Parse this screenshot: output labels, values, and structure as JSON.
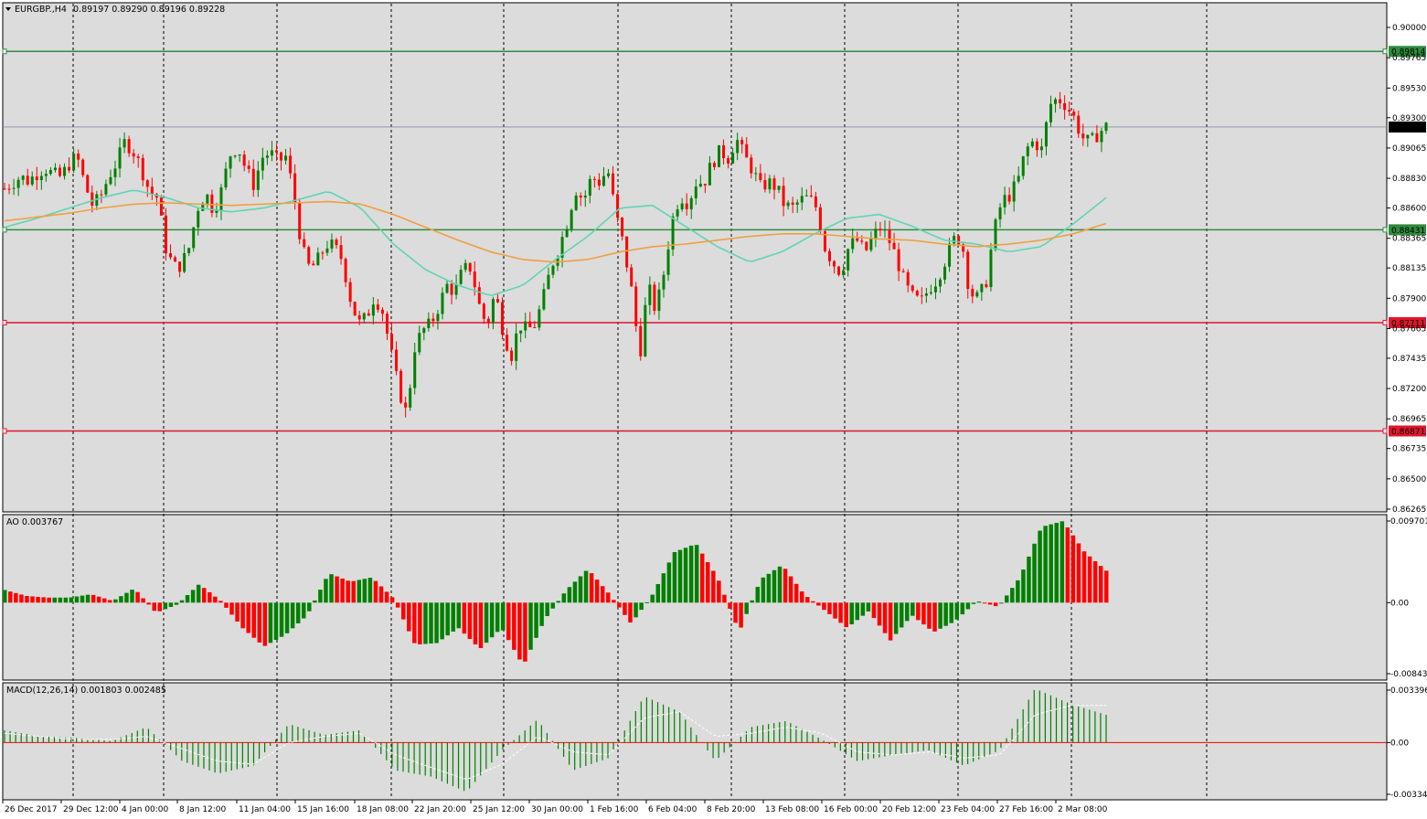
{
  "chart_data": [
    {
      "type": "candlestick",
      "symbol_label": "EURGBP.,H4",
      "ohlc_label": "0.89197 0.89290 0.89196 0.89228",
      "ylim": [
        0.86265,
        0.9
      ],
      "y_ticks": [
        "0.90000",
        "0.89765",
        "0.89530",
        "0.89300",
        "0.89065",
        "0.88830",
        "0.88600",
        "0.88365",
        "0.88135",
        "0.87900",
        "0.87665",
        "0.87435",
        "0.87200",
        "0.86965",
        "0.86735",
        "0.86500",
        "0.86265"
      ],
      "x_ticks": [
        "26 Dec 2017",
        "29 Dec 12:00",
        "4 Jan 00:00",
        "8 Jan 12:00",
        "11 Jan 04:00",
        "15 Jan 16:00",
        "18 Jan 08:00",
        "22 Jan 20:00",
        "25 Jan 12:00",
        "30 Jan 00:00",
        "1 Feb 16:00",
        "6 Feb 04:00",
        "8 Feb 20:00",
        "13 Feb 08:00",
        "16 Feb 00:00",
        "20 Feb 12:00",
        "23 Feb 04:00",
        "27 Feb 16:00",
        "2 Mar 08:00"
      ],
      "current_price": "0.89228",
      "close_path": [
        0.8875,
        0.888,
        0.8884,
        0.8881,
        0.8887,
        0.8891,
        0.8886,
        0.8884,
        0.8894,
        0.89,
        0.8878,
        0.8861,
        0.887,
        0.8885,
        0.8896,
        0.8912,
        0.8904,
        0.8891,
        0.8873,
        0.8868,
        0.883,
        0.8814,
        0.8816,
        0.883,
        0.886,
        0.8872,
        0.8858,
        0.8874,
        0.8901,
        0.8908,
        0.889,
        0.8878,
        0.8899,
        0.8903,
        0.8896,
        0.89,
        0.887,
        0.8828,
        0.8812,
        0.882,
        0.8832,
        0.883,
        0.882,
        0.879,
        0.877,
        0.8775,
        0.8792,
        0.878,
        0.875,
        0.872,
        0.87,
        0.8752,
        0.8765,
        0.877,
        0.8784,
        0.88,
        0.8795,
        0.8812,
        0.8814,
        0.8785,
        0.8768,
        0.8795,
        0.8765,
        0.8745,
        0.877,
        0.8765,
        0.877,
        0.879,
        0.8815,
        0.883,
        0.885,
        0.8875,
        0.8866,
        0.8884,
        0.888,
        0.889,
        0.8856,
        0.883,
        0.8795,
        0.8745,
        0.88,
        0.878,
        0.881,
        0.885,
        0.887,
        0.8864,
        0.888,
        0.888,
        0.8895,
        0.8904,
        0.8899,
        0.8914,
        0.89,
        0.889,
        0.8876,
        0.888,
        0.8876,
        0.8862,
        0.886,
        0.8866,
        0.8868,
        0.886,
        0.883,
        0.8818,
        0.881,
        0.883,
        0.8835,
        0.8825,
        0.8838,
        0.8845,
        0.8835,
        0.882,
        0.88,
        0.879,
        0.8787,
        0.8798,
        0.8805,
        0.882,
        0.8835,
        0.8837,
        0.8795,
        0.879,
        0.88,
        0.884,
        0.8865,
        0.887,
        0.888,
        0.8905,
        0.8912,
        0.8905,
        0.894,
        0.8945,
        0.894,
        0.893,
        0.8915,
        0.891,
        0.8918,
        0.8923
      ],
      "horizontal_levels": [
        {
          "label": "0.89814",
          "value": 0.89814,
          "color": "#2e8b3e"
        },
        {
          "label": "0.88431",
          "value": 0.88431,
          "color": "#2e8b3e"
        },
        {
          "label": "0.87711",
          "value": 0.87711,
          "color": "#e0162b"
        },
        {
          "label": "0.86871",
          "value": 0.86871,
          "color": "#e0162b"
        }
      ],
      "moving_averages": [
        {
          "color": "#5fd5b4",
          "path": [
            0.8845,
            0.8852,
            0.886,
            0.8868,
            0.8874,
            0.8868,
            0.886,
            0.8857,
            0.886,
            0.8866,
            0.8873,
            0.886,
            0.8832,
            0.8812,
            0.88,
            0.8792,
            0.88,
            0.882,
            0.8838,
            0.886,
            0.8862,
            0.8846,
            0.883,
            0.8818,
            0.8826,
            0.884,
            0.8852,
            0.8855,
            0.8846,
            0.8835,
            0.8832,
            0.8826,
            0.883,
            0.8848,
            0.8868
          ]
        },
        {
          "color": "#f0a040",
          "path": [
            0.885,
            0.8853,
            0.8856,
            0.886,
            0.8863,
            0.8864,
            0.8863,
            0.8862,
            0.8863,
            0.8864,
            0.8865,
            0.8863,
            0.8855,
            0.8845,
            0.8835,
            0.8826,
            0.882,
            0.8818,
            0.882,
            0.8826,
            0.883,
            0.8832,
            0.8835,
            0.8838,
            0.884,
            0.884,
            0.8838,
            0.8836,
            0.8835,
            0.8832,
            0.883,
            0.8832,
            0.8835,
            0.884,
            0.8848
          ]
        }
      ]
    },
    {
      "type": "bar",
      "title": "AO 0.003767",
      "ylim": [
        -0.008439,
        0.009701
      ],
      "y_ticks": [
        "0.009701",
        "0.00",
        "-0.008439"
      ],
      "colors": {
        "up": "#008000",
        "down": "#ff0000"
      },
      "values_path": [
        0.0015,
        0.0008,
        0.0006,
        0.0006,
        0.001,
        0.0002,
        0.0017,
        -0.0012,
        -0.0002,
        0.0022,
        0.0002,
        -0.003,
        -0.0052,
        -0.0038,
        -0.0015,
        0.0035,
        0.0025,
        0.003,
        0.0005,
        -0.005,
        -0.0048,
        -0.003,
        -0.0055,
        -0.003,
        -0.0075,
        -0.002,
        0.0015,
        0.004,
        0.001,
        -0.0025,
        0.001,
        0.006,
        0.007,
        0.003,
        -0.0035,
        0.0028,
        0.0045,
        0.001,
        -0.001,
        -0.003,
        -0.001,
        -0.0045,
        -0.0015,
        -0.0035,
        -0.0022,
        0.0002,
        -0.0005,
        0.003,
        0.009,
        0.0097,
        0.006,
        0.0038
      ]
    },
    {
      "type": "bar",
      "title": "MACD(12,26,14) 0.001803 0.002485",
      "ylim": [
        -0.003348,
        0.003396
      ],
      "y_ticks": [
        "0.003396",
        "0.00",
        "-0.003348"
      ],
      "colors": {
        "histogram": "#008000",
        "signal": "#ffffff",
        "zero_line": "#ff0000"
      },
      "values_path": [
        0.0008,
        0.0004,
        0.0003,
        0.0001,
        0.001,
        -0.0012,
        -0.002,
        -0.0015,
        0.0012,
        0.0005,
        0.0008,
        -0.0018,
        -0.0022,
        -0.0032,
        -0.0005,
        0.0015,
        -0.0018,
        -0.001,
        0.003,
        0.002,
        -0.0012,
        0.001,
        0.0014,
        0.0002,
        -0.0012,
        -0.0008,
        -0.0005,
        -0.0015,
        -0.0005,
        0.0035,
        0.0025,
        0.0018
      ],
      "signal_path": [
        0.0006,
        0.0004,
        0.0002,
        0.0002,
        0.0004,
        -0.0004,
        -0.0012,
        -0.0014,
        0.0,
        0.0004,
        0.0006,
        -0.0008,
        -0.0016,
        -0.0024,
        -0.0014,
        0.0004,
        -0.0006,
        -0.0008,
        0.0016,
        0.002,
        0.0004,
        0.0006,
        0.001,
        0.0006,
        -0.0006,
        -0.0008,
        -0.0006,
        -0.001,
        -0.0008,
        0.0018,
        0.0024,
        0.0024
      ]
    }
  ]
}
